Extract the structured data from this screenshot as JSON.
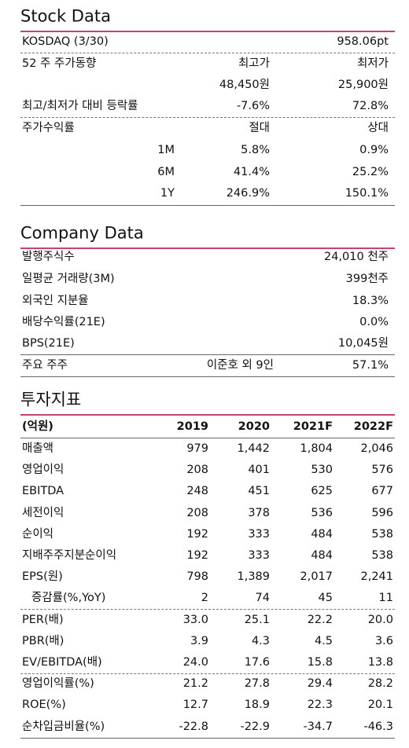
{
  "stock_data": {
    "title": "Stock Data",
    "rows": [
      [
        "KOSDAQ (3/30)",
        "958.06pt"
      ],
      [
        "52 주 주가동향",
        "최고가",
        "최저가"
      ],
      [
        "48,450원",
        "25,900원"
      ],
      [
        "최고/최저가 대비 등락률",
        "-7.6%",
        "72.8%"
      ],
      [
        "주가수익률",
        "절대",
        "상대"
      ],
      [
        "1M",
        "5.8%",
        "0.9%"
      ],
      [
        "6M",
        "41.4%",
        "25.2%"
      ],
      [
        "1Y",
        "246.9%",
        "150.1%"
      ]
    ]
  },
  "company_data": {
    "title": "Company Data",
    "rows": [
      [
        "발행주식수",
        "24,010 천주"
      ],
      [
        "일평균 거래량(3M)",
        "399천주"
      ],
      [
        "외국인 지분율",
        "18.3%"
      ],
      [
        "배당수익률(21E)",
        "0.0%"
      ],
      [
        "BPS(21E)",
        "10,045원"
      ],
      [
        "주요 주주",
        "이준호 외 9인",
        "57.1%"
      ]
    ]
  },
  "investment": {
    "title": "투자지표",
    "header": [
      "(억원)",
      "2019",
      "2020",
      "2021F",
      "2022F"
    ],
    "rows": [
      [
        "매출액",
        "979",
        "1,442",
        "1,804",
        "2,046"
      ],
      [
        "영업이익",
        "208",
        "401",
        "530",
        "576"
      ],
      [
        "EBITDA",
        "248",
        "451",
        "625",
        "677"
      ],
      [
        "세전이익",
        "208",
        "378",
        "536",
        "596"
      ],
      [
        "순이익",
        "192",
        "333",
        "484",
        "538"
      ],
      [
        "지배주주지분순이익",
        "192",
        "333",
        "484",
        "538"
      ],
      [
        "EPS(원)",
        "798",
        "1,389",
        "2,017",
        "2,241"
      ],
      [
        "증감률(%,YoY)",
        "2",
        "74",
        "45",
        "11"
      ],
      [
        "PER(배)",
        "33.0",
        "25.1",
        "22.2",
        "20.0"
      ],
      [
        "PBR(배)",
        "3.9",
        "4.3",
        "4.5",
        "3.6"
      ],
      [
        "EV/EBITDA(배)",
        "24.0",
        "17.6",
        "15.8",
        "13.8"
      ],
      [
        "영업이익률(%)",
        "21.2",
        "27.8",
        "29.4",
        "28.2"
      ],
      [
        "ROE(%)",
        "12.7",
        "18.9",
        "22.3",
        "20.1"
      ],
      [
        "순차입금비율(%)",
        "-22.8",
        "-22.9",
        "-34.7",
        "-46.3"
      ]
    ]
  }
}
